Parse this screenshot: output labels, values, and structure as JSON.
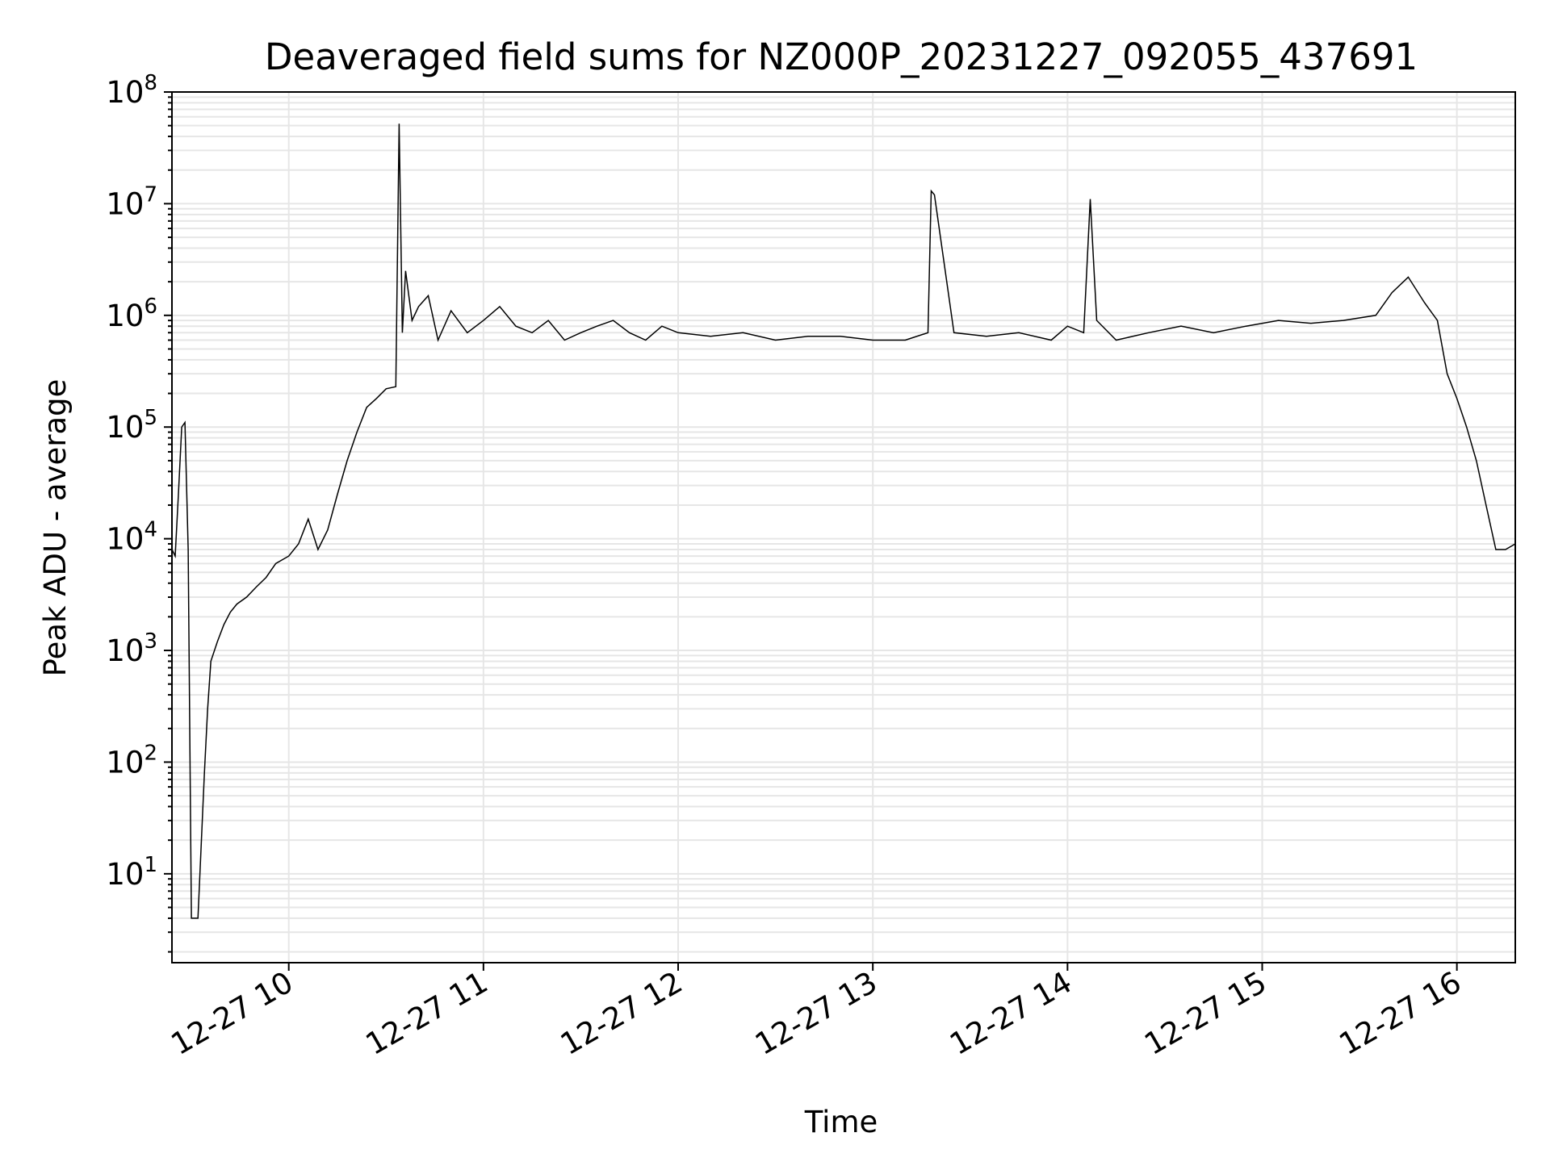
{
  "chart_data": {
    "type": "line",
    "title": "Deaveraged field sums for NZ000P_20231227_092055_437691",
    "xlabel": "Time",
    "ylabel": "Peak ADU - average",
    "yscale": "log",
    "ylim": [
      1.6,
      100000000
    ],
    "xlim": [
      "2023-12-27 09:24",
      "2023-12-27 16:18"
    ],
    "grid": "major and minor, light gray",
    "legend": "none",
    "line_color": "#000000",
    "x_ticks": [
      "12-27 10",
      "12-27 11",
      "12-27 12",
      "12-27 13",
      "12-27 14",
      "12-27 15",
      "12-27 16"
    ],
    "y_ticks": [
      {
        "base": "10",
        "exp": "1"
      },
      {
        "base": "10",
        "exp": "2"
      },
      {
        "base": "10",
        "exp": "3"
      },
      {
        "base": "10",
        "exp": "4"
      },
      {
        "base": "10",
        "exp": "5"
      },
      {
        "base": "10",
        "exp": "6"
      },
      {
        "base": "10",
        "exp": "7"
      },
      {
        "base": "10",
        "exp": "8"
      }
    ],
    "x": [
      "2023-12-27 09:24",
      "2023-12-27 09:25",
      "2023-12-27 09:26",
      "2023-12-27 09:27",
      "2023-12-27 09:28",
      "2023-12-27 09:29",
      "2023-12-27 09:30",
      "2023-12-27 09:31",
      "2023-12-27 09:32",
      "2023-12-27 09:34",
      "2023-12-27 09:35",
      "2023-12-27 09:36",
      "2023-12-27 09:38",
      "2023-12-27 09:40",
      "2023-12-27 09:42",
      "2023-12-27 09:44",
      "2023-12-27 09:47",
      "2023-12-27 09:50",
      "2023-12-27 09:53",
      "2023-12-27 09:56",
      "2023-12-27 10:00",
      "2023-12-27 10:03",
      "2023-12-27 10:06",
      "2023-12-27 10:09",
      "2023-12-27 10:12",
      "2023-12-27 10:15",
      "2023-12-27 10:18",
      "2023-12-27 10:21",
      "2023-12-27 10:24",
      "2023-12-27 10:27",
      "2023-12-27 10:30",
      "2023-12-27 10:33",
      "2023-12-27 10:34",
      "2023-12-27 10:35",
      "2023-12-27 10:36",
      "2023-12-27 10:38",
      "2023-12-27 10:40",
      "2023-12-27 10:43",
      "2023-12-27 10:46",
      "2023-12-27 10:50",
      "2023-12-27 10:55",
      "2023-12-27 11:00",
      "2023-12-27 11:05",
      "2023-12-27 11:10",
      "2023-12-27 11:15",
      "2023-12-27 11:20",
      "2023-12-27 11:25",
      "2023-12-27 11:30",
      "2023-12-27 11:35",
      "2023-12-27 11:40",
      "2023-12-27 11:45",
      "2023-12-27 11:50",
      "2023-12-27 11:55",
      "2023-12-27 12:00",
      "2023-12-27 12:10",
      "2023-12-27 12:20",
      "2023-12-27 12:30",
      "2023-12-27 12:40",
      "2023-12-27 12:50",
      "2023-12-27 13:00",
      "2023-12-27 13:10",
      "2023-12-27 13:17",
      "2023-12-27 13:18",
      "2023-12-27 13:19",
      "2023-12-27 13:25",
      "2023-12-27 13:35",
      "2023-12-27 13:45",
      "2023-12-27 13:55",
      "2023-12-27 14:00",
      "2023-12-27 14:05",
      "2023-12-27 14:07",
      "2023-12-27 14:09",
      "2023-12-27 14:15",
      "2023-12-27 14:25",
      "2023-12-27 14:35",
      "2023-12-27 14:45",
      "2023-12-27 14:55",
      "2023-12-27 15:05",
      "2023-12-27 15:15",
      "2023-12-27 15:25",
      "2023-12-27 15:35",
      "2023-12-27 15:40",
      "2023-12-27 15:45",
      "2023-12-27 15:50",
      "2023-12-27 15:54",
      "2023-12-27 15:57",
      "2023-12-27 16:00",
      "2023-12-27 16:03",
      "2023-12-27 16:06",
      "2023-12-27 16:09",
      "2023-12-27 16:12",
      "2023-12-27 16:15",
      "2023-12-27 16:18"
    ],
    "y": [
      8000,
      7000,
      25000,
      100000,
      110000,
      8000,
      4,
      4,
      4,
      80,
      300,
      800,
      1200,
      1700,
      2200,
      2600,
      3000,
      3700,
      4500,
      6000,
      7000,
      9000,
      15000,
      8000,
      12000,
      25000,
      50000,
      90000,
      150000,
      180000,
      220000,
      230000,
      52000000,
      700000,
      2500000,
      900000,
      1200000,
      1500000,
      600000,
      1100000,
      700000,
      900000,
      1200000,
      800000,
      700000,
      900000,
      600000,
      700000,
      800000,
      900000,
      700000,
      600000,
      800000,
      700000,
      650000,
      700000,
      600000,
      650000,
      650000,
      600000,
      600000,
      700000,
      13000000,
      12000000,
      700000,
      650000,
      700000,
      600000,
      800000,
      700000,
      11000000,
      900000,
      600000,
      700000,
      800000,
      700000,
      800000,
      900000,
      850000,
      900000,
      1000000,
      1600000,
      2200000,
      1300000,
      900000,
      300000,
      180000,
      100000,
      50000,
      20000,
      8000,
      8000,
      9000
    ]
  }
}
